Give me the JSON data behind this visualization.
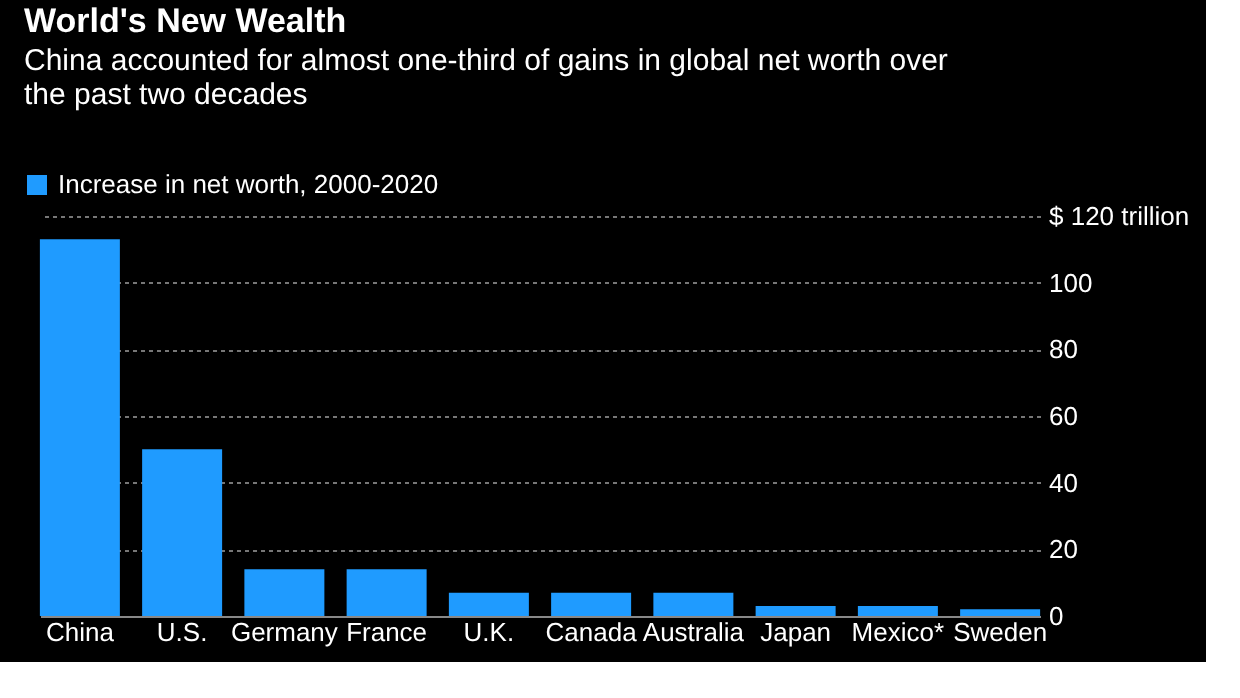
{
  "chart_data": {
    "type": "bar",
    "title": "World's New Wealth",
    "subtitle": "China accounted for almost one-third of gains in global net worth over the past two decades",
    "categories": [
      "China",
      "U.S.",
      "Germany",
      "France",
      "U.K.",
      "Canada",
      "Australia",
      "Japan",
      "Mexico*",
      "Sweden"
    ],
    "series": [
      {
        "name": "Increase in net worth, 2000-2020",
        "color": "#1f9bff",
        "values": [
          113,
          50,
          14,
          14,
          7,
          7,
          7,
          3,
          3,
          2
        ]
      }
    ],
    "ylim": [
      0,
      120
    ],
    "yticks": [
      0,
      20,
      40,
      60,
      80,
      100,
      {
        "value": 120,
        "label": "$ 120 trillion"
      }
    ],
    "grid": "y",
    "legend": "top left"
  }
}
